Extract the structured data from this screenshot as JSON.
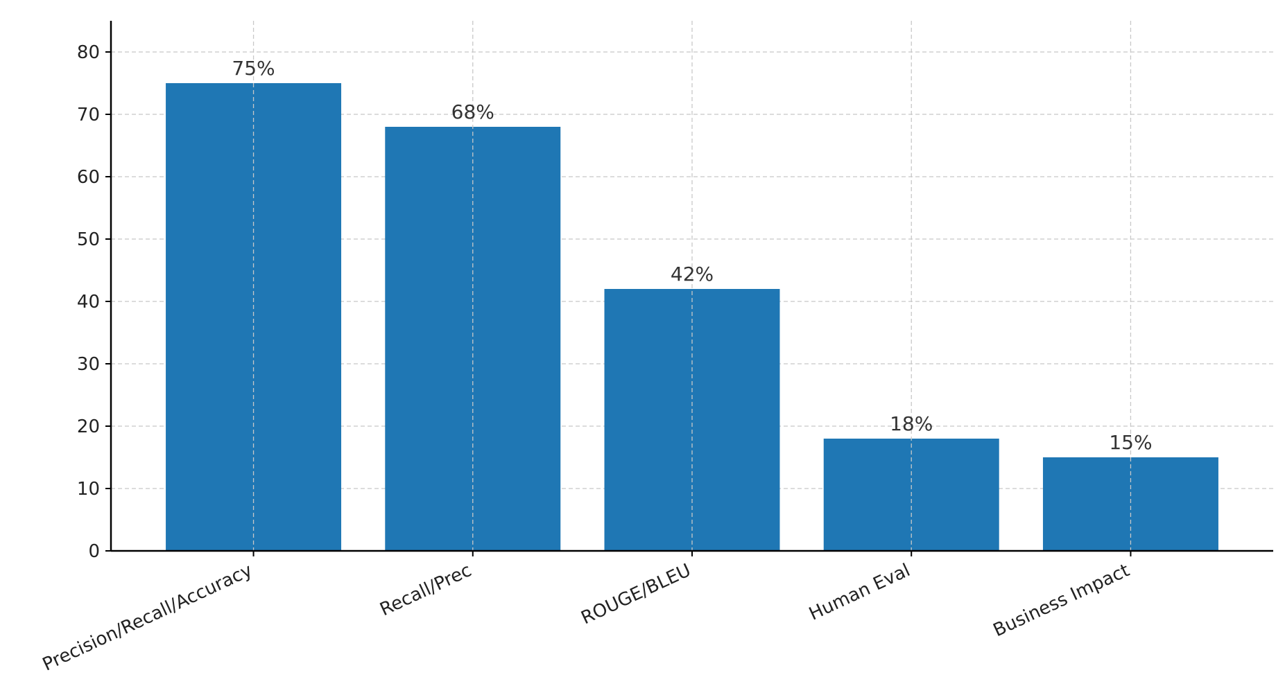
{
  "chart_data": {
    "type": "bar",
    "categories": [
      "Precision/Recall/Accuracy",
      "Recall/Prec",
      "ROUGE/BLEU",
      "Human Eval",
      "Business Impact"
    ],
    "values": [
      75,
      68,
      42,
      18,
      15
    ],
    "data_labels": [
      "75%",
      "68%",
      "42%",
      "18%",
      "15%"
    ],
    "yticks": [
      0,
      10,
      20,
      30,
      40,
      50,
      60,
      70,
      80
    ],
    "ylim": [
      0,
      85
    ],
    "grid": true,
    "bar_color": "#1f77b4",
    "grid_color": "#c8c8c8",
    "axis_color": "#000000"
  }
}
